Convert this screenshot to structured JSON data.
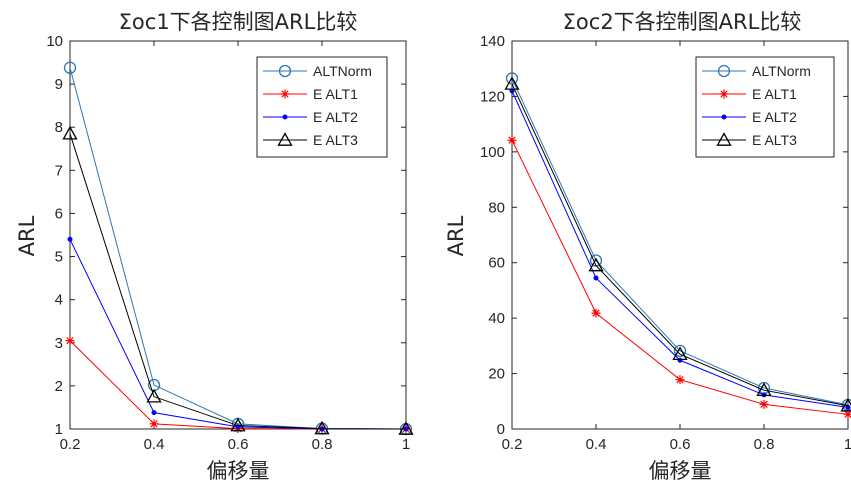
{
  "chart_data": [
    {
      "type": "line",
      "title": "Σoc1下各控制图ARL比较",
      "xlabel": "偏移量",
      "ylabel": "ARL",
      "x": [
        0.2,
        0.4,
        0.6,
        0.8,
        1
      ],
      "xticks": [
        "0.2",
        "0.4",
        "0.6",
        "0.8",
        "1"
      ],
      "yticks": [
        "1",
        "2",
        "3",
        "4",
        "5",
        "6",
        "7",
        "8",
        "9",
        "10"
      ],
      "xlim": [
        0.2,
        1
      ],
      "ylim": [
        1,
        10
      ],
      "grid": false,
      "legend": "top-right",
      "series": [
        {
          "name": "ALTNorm",
          "values": [
            9.38,
            2.02,
            1.12,
            1.01,
            1.0
          ],
          "color": "#2E77B4",
          "marker": "circle"
        },
        {
          "name": "E ALT1",
          "values": [
            3.05,
            1.12,
            1.01,
            1.0,
            1.0
          ],
          "color": "#FF0000",
          "marker": "asterisk"
        },
        {
          "name": "E ALT2",
          "values": [
            5.4,
            1.38,
            1.05,
            1.0,
            1.0
          ],
          "color": "#0000FF",
          "marker": "dot"
        },
        {
          "name": "E ALT3",
          "values": [
            7.85,
            1.75,
            1.08,
            1.01,
            1.0
          ],
          "color": "#000000",
          "marker": "triangle"
        }
      ]
    },
    {
      "type": "line",
      "title": "Σoc2下各控制图ARL比较",
      "xlabel": "偏移量",
      "ylabel": "ARL",
      "x": [
        0.2,
        0.4,
        0.6,
        0.8,
        1
      ],
      "xticks": [
        "0.2",
        "0.4",
        "0.6",
        "0.8",
        "1"
      ],
      "yticks": [
        "0",
        "20",
        "40",
        "60",
        "80",
        "100",
        "120",
        "140"
      ],
      "xlim": [
        0.2,
        1
      ],
      "ylim": [
        0,
        140
      ],
      "grid": false,
      "legend": "top-right",
      "series": [
        {
          "name": "ALTNorm",
          "values": [
            126.5,
            60.8,
            28.2,
            14.8,
            8.7
          ],
          "color": "#2E77B4",
          "marker": "circle"
        },
        {
          "name": "E ALT1",
          "values": [
            104.2,
            41.8,
            17.8,
            8.9,
            5.3
          ],
          "color": "#FF0000",
          "marker": "asterisk"
        },
        {
          "name": "E ALT2",
          "values": [
            122.0,
            54.5,
            24.8,
            12.3,
            7.8
          ],
          "color": "#0000FF",
          "marker": "dot"
        },
        {
          "name": "E ALT3",
          "values": [
            124.5,
            59.0,
            27.0,
            14.0,
            8.4
          ],
          "color": "#000000",
          "marker": "triangle"
        }
      ]
    }
  ]
}
